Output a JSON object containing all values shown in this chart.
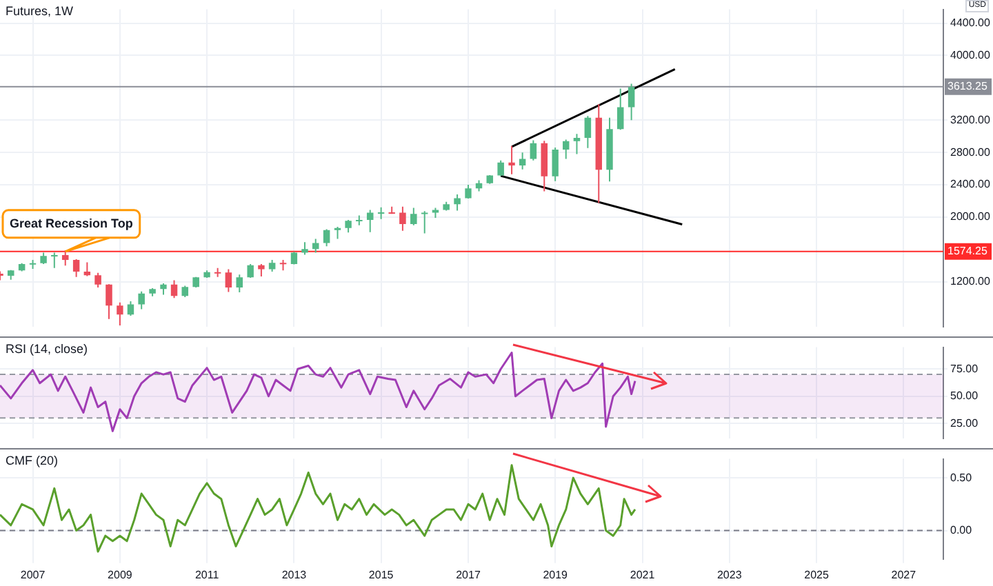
{
  "chart_data": [
    {
      "type": "candlestick",
      "title": "Futures, 1W",
      "ylabel": "USD",
      "x": [
        "2006-04",
        "2006-07",
        "2006-10",
        "2007-01",
        "2007-04",
        "2007-07",
        "2007-10",
        "2008-01",
        "2008-04",
        "2008-07",
        "2008-10",
        "2009-01",
        "2009-04",
        "2009-07",
        "2009-10",
        "2010-01",
        "2010-04",
        "2010-07",
        "2010-10",
        "2011-01",
        "2011-04",
        "2011-07",
        "2011-10",
        "2012-01",
        "2012-04",
        "2012-07",
        "2012-10",
        "2013-01",
        "2013-04",
        "2013-07",
        "2013-10",
        "2014-01",
        "2014-04",
        "2014-07",
        "2014-10",
        "2015-01",
        "2015-04",
        "2015-07",
        "2015-10",
        "2016-01",
        "2016-04",
        "2016-07",
        "2016-10",
        "2017-01",
        "2017-04",
        "2017-07",
        "2017-10",
        "2018-01",
        "2018-04",
        "2018-07",
        "2018-10",
        "2019-01",
        "2019-04",
        "2019-07",
        "2019-10",
        "2020-01",
        "2020-04",
        "2020-07",
        "2020-10"
      ],
      "ohlc": [
        [
          1300,
          1330,
          1220,
          1275
        ],
        [
          1275,
          1345,
          1225,
          1340
        ],
        [
          1340,
          1430,
          1330,
          1420
        ],
        [
          1420,
          1470,
          1360,
          1430
        ],
        [
          1430,
          1560,
          1420,
          1520
        ],
        [
          1520,
          1560,
          1370,
          1530
        ],
        [
          1530,
          1590,
          1400,
          1470
        ],
        [
          1470,
          1480,
          1260,
          1325
        ],
        [
          1325,
          1440,
          1270,
          1280
        ],
        [
          1280,
          1310,
          1130,
          1165
        ],
        [
          1165,
          1170,
          740,
          905
        ],
        [
          905,
          945,
          660,
          795
        ],
        [
          795,
          960,
          780,
          920
        ],
        [
          920,
          1080,
          860,
          1055
        ],
        [
          1055,
          1120,
          1020,
          1110
        ],
        [
          1110,
          1180,
          1040,
          1165
        ],
        [
          1165,
          1220,
          1000,
          1025
        ],
        [
          1025,
          1150,
          1010,
          1135
        ],
        [
          1135,
          1260,
          1130,
          1255
        ],
        [
          1255,
          1340,
          1250,
          1320
        ],
        [
          1320,
          1370,
          1260,
          1315
        ],
        [
          1315,
          1355,
          1075,
          1130
        ],
        [
          1130,
          1290,
          1070,
          1255
        ],
        [
          1255,
          1420,
          1250,
          1405
        ],
        [
          1405,
          1420,
          1265,
          1355
        ],
        [
          1355,
          1470,
          1325,
          1435
        ],
        [
          1435,
          1470,
          1340,
          1420
        ],
        [
          1420,
          1570,
          1415,
          1560
        ],
        [
          1560,
          1690,
          1535,
          1605
        ],
        [
          1605,
          1730,
          1560,
          1680
        ],
        [
          1680,
          1850,
          1640,
          1840
        ],
        [
          1840,
          1880,
          1730,
          1865
        ],
        [
          1865,
          1965,
          1810,
          1955
        ],
        [
          1955,
          2020,
          1900,
          1965
        ],
        [
          1965,
          2090,
          1815,
          2055
        ],
        [
          2055,
          2120,
          1975,
          2060
        ],
        [
          2060,
          2130,
          2040,
          2055
        ],
        [
          2055,
          2130,
          1830,
          1915
        ],
        [
          1915,
          2115,
          1900,
          2040
        ],
        [
          2040,
          2075,
          1800,
          2055
        ],
        [
          2055,
          2115,
          1990,
          2090
        ],
        [
          2090,
          2190,
          2080,
          2160
        ],
        [
          2160,
          2280,
          2080,
          2235
        ],
        [
          2235,
          2400,
          2230,
          2355
        ],
        [
          2355,
          2455,
          2320,
          2420
        ],
        [
          2420,
          2520,
          2410,
          2515
        ],
        [
          2515,
          2700,
          2510,
          2675
        ],
        [
          2675,
          2880,
          2530,
          2640
        ],
        [
          2640,
          2800,
          2590,
          2720
        ],
        [
          2720,
          2950,
          2700,
          2915
        ],
        [
          2915,
          2945,
          2320,
          2505
        ],
        [
          2505,
          2860,
          2445,
          2835
        ],
        [
          2835,
          2960,
          2720,
          2940
        ],
        [
          2940,
          3030,
          2780,
          2980
        ],
        [
          2980,
          3250,
          2855,
          3230
        ],
        [
          3230,
          3395,
          2175,
          2585
        ],
        [
          2585,
          3230,
          2440,
          3090
        ],
        [
          3090,
          3590,
          3080,
          3360
        ],
        [
          3360,
          3650,
          3200,
          3610
        ]
      ],
      "series": [
        {
          "type": "line",
          "color": "#000000",
          "x": [
            "2018-01",
            "2021-10"
          ],
          "values": [
            2870,
            3830
          ]
        },
        {
          "type": "line",
          "color": "#000000",
          "x": [
            "2017-10",
            "2021-12"
          ],
          "values": [
            2510,
            1910
          ]
        }
      ],
      "xlim": [
        "2006-04",
        "2027-12"
      ],
      "xticks": [
        "2007",
        "2009",
        "2011",
        "2013",
        "2015",
        "2017",
        "2019",
        "2021",
        "2023",
        "2025",
        "2027"
      ],
      "ylim": [
        640,
        4570
      ],
      "yticks": [
        {
          "value": 1200,
          "label": "1200.00"
        },
        {
          "value": 2000,
          "label": "2000.00"
        },
        {
          "value": 2400,
          "label": "2400.00"
        },
        {
          "value": 2800,
          "label": "2800.00"
        },
        {
          "value": 3200,
          "label": "3200.00"
        },
        {
          "value": 4000,
          "label": "4000.00"
        },
        {
          "value": 4400,
          "label": "4400.00"
        }
      ],
      "ref_lines": [
        {
          "axis": "y",
          "value": 1574.25,
          "label": "1574.25",
          "color": "#ff2a2a"
        },
        {
          "axis": "y",
          "value": 3613.25,
          "label": "3613.25",
          "color": "#8a8d96"
        }
      ],
      "annotations": [
        {
          "text": "Great Recession Top",
          "x": "2007-10",
          "y": 1574.25
        }
      ],
      "grid": true,
      "tick_labels": "y"
    },
    {
      "type": "line",
      "title": "RSI (14, close)",
      "series": [
        {
          "color": "#a03cb4",
          "x": [
            "2006-04",
            "2006-07",
            "2006-10",
            "2007-01",
            "2007-03",
            "2007-06",
            "2007-08",
            "2007-10",
            "2007-12",
            "2008-03",
            "2008-05",
            "2008-07",
            "2008-09",
            "2008-11",
            "2009-01",
            "2009-03",
            "2009-05",
            "2009-07",
            "2009-09",
            "2009-11",
            "2010-01",
            "2010-03",
            "2010-05",
            "2010-07",
            "2010-09",
            "2010-11",
            "2011-01",
            "2011-03",
            "2011-05",
            "2011-08",
            "2011-10",
            "2011-12",
            "2012-02",
            "2012-04",
            "2012-06",
            "2012-08",
            "2012-10",
            "2012-12",
            "2013-02",
            "2013-05",
            "2013-07",
            "2013-09",
            "2013-11",
            "2014-02",
            "2014-04",
            "2014-07",
            "2014-10",
            "2014-12",
            "2015-03",
            "2015-05",
            "2015-08",
            "2015-10",
            "2016-01",
            "2016-03",
            "2016-05",
            "2016-08",
            "2016-11",
            "2017-01",
            "2017-03",
            "2017-06",
            "2017-08",
            "2017-10",
            "2018-01",
            "2018-02",
            "2018-04",
            "2018-06",
            "2018-08",
            "2018-10",
            "2018-12",
            "2019-02",
            "2019-04",
            "2019-06",
            "2019-08",
            "2019-10",
            "2019-12",
            "2020-02",
            "2020-03",
            "2020-05",
            "2020-07",
            "2020-09",
            "2020-10",
            "2020-11"
          ],
          "values": [
            60,
            48,
            62,
            74,
            62,
            70,
            55,
            68,
            55,
            35,
            58,
            40,
            45,
            18,
            38,
            30,
            50,
            62,
            68,
            72,
            70,
            72,
            48,
            45,
            60,
            68,
            76,
            65,
            68,
            35,
            45,
            55,
            70,
            67,
            50,
            65,
            60,
            55,
            75,
            78,
            70,
            68,
            76,
            58,
            70,
            74,
            52,
            68,
            66,
            65,
            40,
            55,
            38,
            48,
            60,
            66,
            58,
            72,
            68,
            70,
            62,
            75,
            90,
            50,
            55,
            60,
            65,
            66,
            30,
            55,
            65,
            55,
            58,
            62,
            72,
            80,
            22,
            50,
            58,
            68,
            52,
            64
          ]
        }
      ],
      "xlim": [
        "2006-04",
        "2027-12"
      ],
      "xticks": [
        "2007",
        "2009",
        "2011",
        "2013",
        "2015",
        "2017",
        "2019",
        "2021",
        "2023",
        "2025",
        "2027"
      ],
      "ylim": [
        11,
        95
      ],
      "yticks": [
        {
          "value": 25,
          "label": "25.00"
        },
        {
          "value": 50,
          "label": "50.00"
        },
        {
          "value": 75,
          "label": "75.00"
        }
      ],
      "bands": [
        {
          "axis": "y",
          "from": 30,
          "to": 70,
          "color": "#9c27b0"
        }
      ],
      "ref_lines": [
        {
          "axis": "y",
          "value": 70,
          "color": "#9598a1",
          "line_style": "dashed"
        },
        {
          "axis": "y",
          "value": 30,
          "color": "#9598a1",
          "line_style": "dashed"
        }
      ],
      "grid": true,
      "tick_labels": "y"
    },
    {
      "type": "line",
      "title": "CMF (20)",
      "series": [
        {
          "color": "#5aa02c",
          "x": [
            "2006-04",
            "2006-07",
            "2006-10",
            "2007-01",
            "2007-04",
            "2007-07",
            "2007-09",
            "2007-11",
            "2008-01",
            "2008-03",
            "2008-05",
            "2008-07",
            "2008-09",
            "2008-11",
            "2009-01",
            "2009-03",
            "2009-05",
            "2009-07",
            "2009-09",
            "2009-11",
            "2010-01",
            "2010-03",
            "2010-05",
            "2010-07",
            "2010-09",
            "2010-11",
            "2011-01",
            "2011-03",
            "2011-05",
            "2011-07",
            "2011-09",
            "2011-11",
            "2012-01",
            "2012-03",
            "2012-05",
            "2012-07",
            "2012-09",
            "2012-11",
            "2013-01",
            "2013-03",
            "2013-05",
            "2013-07",
            "2013-09",
            "2013-11",
            "2014-01",
            "2014-03",
            "2014-05",
            "2014-07",
            "2014-09",
            "2014-11",
            "2015-02",
            "2015-04",
            "2015-06",
            "2015-08",
            "2015-10",
            "2016-01",
            "2016-03",
            "2016-05",
            "2016-07",
            "2016-09",
            "2016-11",
            "2017-01",
            "2017-03",
            "2017-05",
            "2017-07",
            "2017-09",
            "2017-11",
            "2018-01",
            "2018-03",
            "2018-05",
            "2018-07",
            "2018-09",
            "2018-11",
            "2018-12",
            "2019-02",
            "2019-04",
            "2019-06",
            "2019-08",
            "2019-10",
            "2019-12",
            "2020-01",
            "2020-03",
            "2020-05",
            "2020-07",
            "2020-08",
            "2020-10",
            "2020-11"
          ],
          "values": [
            0.15,
            0.05,
            0.25,
            0.2,
            0.05,
            0.4,
            0.1,
            0.2,
            0.0,
            0.05,
            0.15,
            -0.2,
            -0.05,
            -0.1,
            -0.05,
            -0.1,
            0.1,
            0.35,
            0.25,
            0.15,
            0.1,
            -0.15,
            0.1,
            0.05,
            0.2,
            0.35,
            0.45,
            0.35,
            0.3,
            0.05,
            -0.15,
            0.0,
            0.15,
            0.3,
            0.15,
            0.2,
            0.3,
            0.05,
            0.2,
            0.35,
            0.55,
            0.35,
            0.25,
            0.35,
            0.1,
            0.25,
            0.2,
            0.3,
            0.15,
            0.25,
            0.15,
            0.2,
            0.15,
            0.05,
            0.1,
            -0.05,
            0.1,
            0.15,
            0.2,
            0.2,
            0.1,
            0.25,
            0.2,
            0.35,
            0.1,
            0.3,
            0.15,
            0.62,
            0.3,
            0.2,
            0.1,
            0.25,
            0.05,
            -0.15,
            0.05,
            0.2,
            0.5,
            0.35,
            0.25,
            0.35,
            0.4,
            0.0,
            -0.05,
            0.05,
            0.3,
            0.15,
            0.2
          ]
        }
      ],
      "xlim": [
        "2006-04",
        "2027-12"
      ],
      "xticks": [
        "2007",
        "2009",
        "2011",
        "2013",
        "2015",
        "2017",
        "2019",
        "2021",
        "2023",
        "2025",
        "2027"
      ],
      "ylim": [
        -0.27,
        0.68
      ],
      "yticks": [
        {
          "value": 0,
          "label": "0.00"
        },
        {
          "value": 0.5,
          "label": "0.50"
        }
      ],
      "ref_lines": [
        {
          "axis": "y",
          "value": 0,
          "color": "#787b86",
          "line_style": "dashed"
        }
      ],
      "grid": true
    }
  ]
}
